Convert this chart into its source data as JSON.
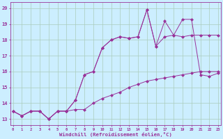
{
  "xlabel": "Windchill (Refroidissement éolien,°C)",
  "bg_color": "#cceeff",
  "grid_color": "#aaccbb",
  "line_color": "#993399",
  "x_ticks": [
    0,
    1,
    2,
    3,
    4,
    5,
    6,
    7,
    8,
    9,
    10,
    11,
    12,
    13,
    14,
    15,
    16,
    17,
    18,
    19,
    20,
    21,
    22,
    23
  ],
  "y_ticks": [
    13,
    14,
    15,
    16,
    17,
    18,
    19,
    20
  ],
  "xlim": [
    -0.3,
    23.3
  ],
  "ylim": [
    12.6,
    20.4
  ],
  "series1_y": [
    13.5,
    13.2,
    13.5,
    13.5,
    13.0,
    13.5,
    13.5,
    13.6,
    13.6,
    14.0,
    14.3,
    14.5,
    14.7,
    15.0,
    15.2,
    15.4,
    15.5,
    15.6,
    15.7,
    15.8,
    15.9,
    16.0,
    16.0,
    16.0
  ],
  "series2_y": [
    13.5,
    13.2,
    13.5,
    13.5,
    13.0,
    13.5,
    13.5,
    14.2,
    15.8,
    16.0,
    17.5,
    18.0,
    18.2,
    18.1,
    18.2,
    19.9,
    17.6,
    18.2,
    18.3,
    18.2,
    18.3,
    18.3,
    18.3,
    18.3
  ],
  "series3_y": [
    13.5,
    13.2,
    13.5,
    13.5,
    13.0,
    13.5,
    13.5,
    14.2,
    15.8,
    16.0,
    17.5,
    18.0,
    18.2,
    18.1,
    18.2,
    19.9,
    17.6,
    19.2,
    18.3,
    19.3,
    19.3,
    15.8,
    15.7,
    15.9
  ]
}
